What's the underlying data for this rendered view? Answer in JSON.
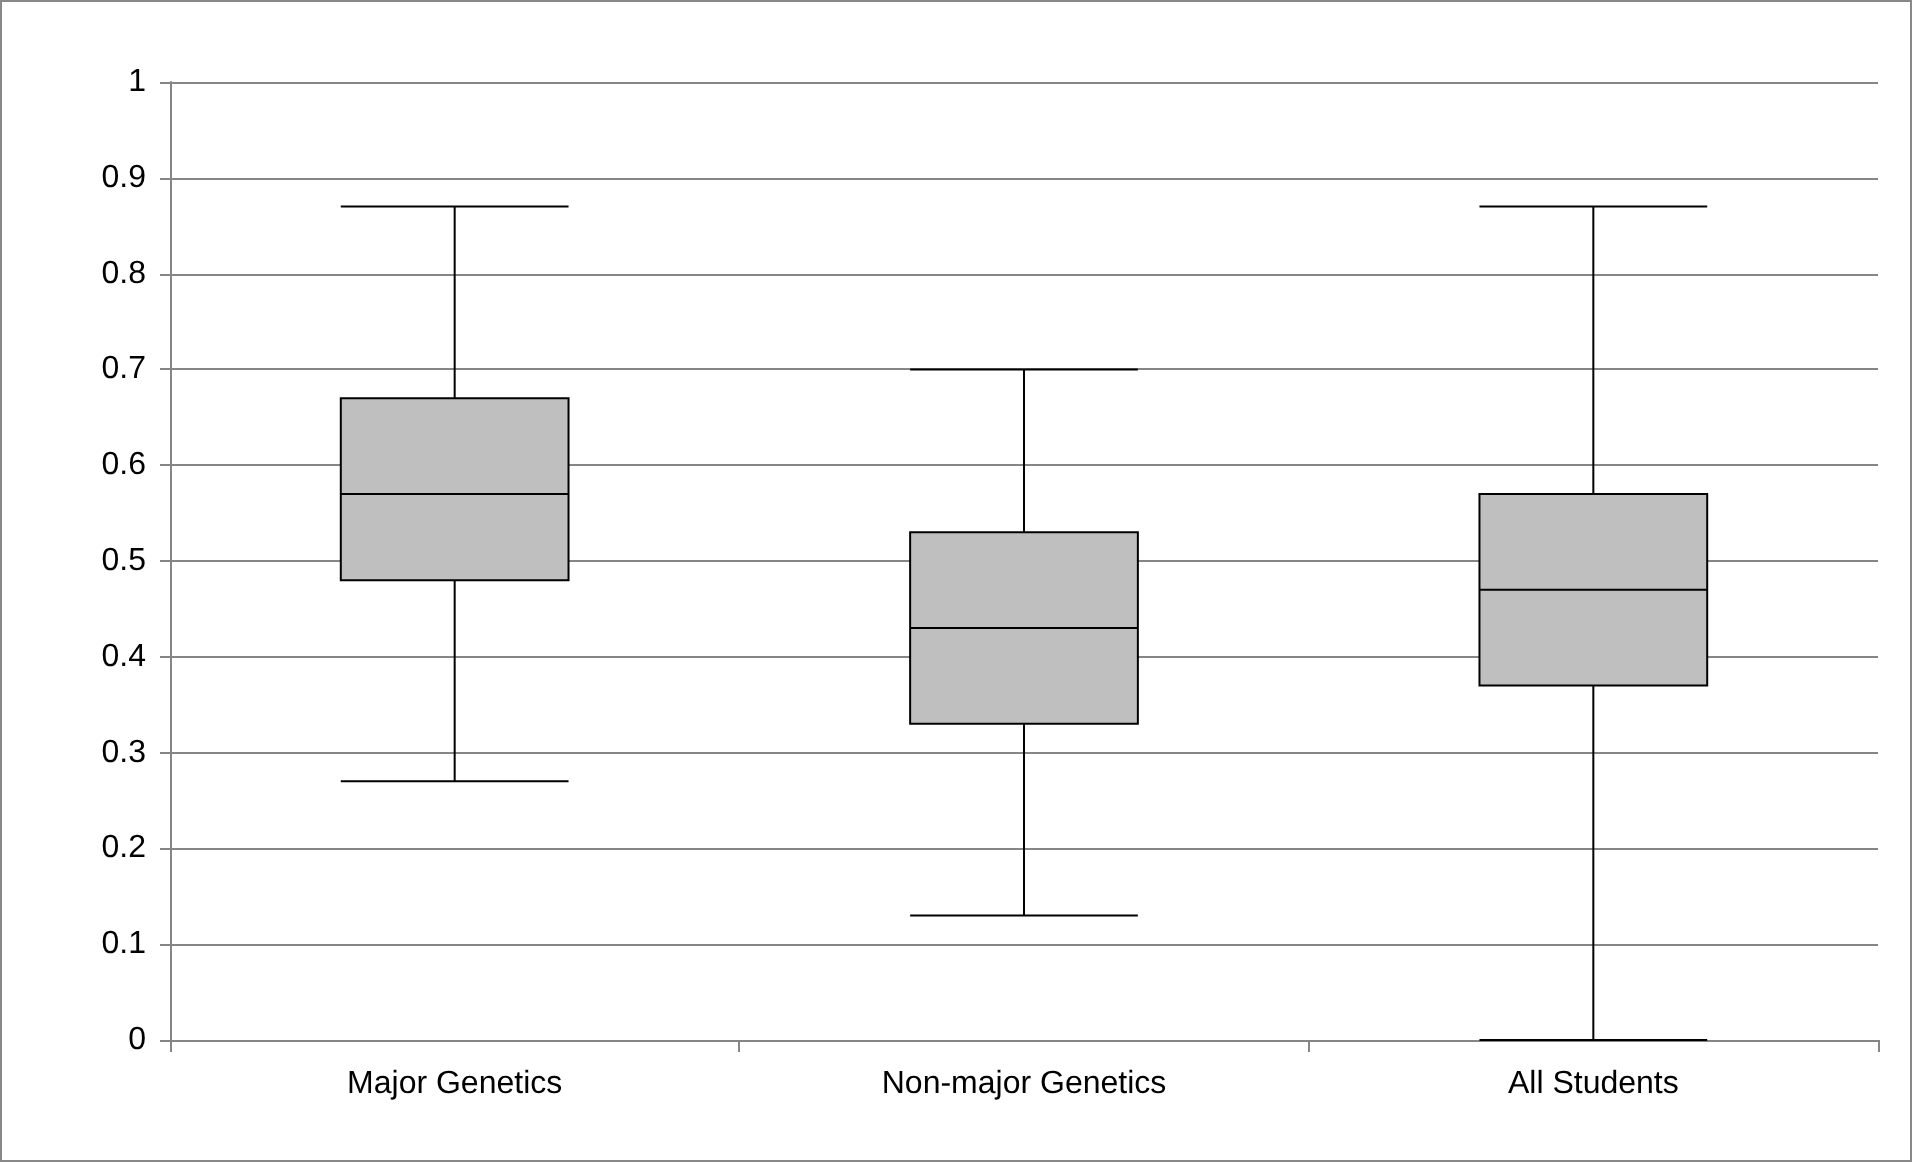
{
  "chart_data": {
    "type": "box",
    "categories": [
      "Major Genetics",
      "Non-major Genetics",
      "All Students"
    ],
    "boxes": [
      {
        "low": 0.27,
        "q1": 0.48,
        "median": 0.57,
        "q3": 0.67,
        "high": 0.87
      },
      {
        "low": 0.13,
        "q1": 0.33,
        "median": 0.43,
        "q3": 0.53,
        "high": 0.7
      },
      {
        "low": 0,
        "q1": 0.37,
        "median": 0.47,
        "q3": 0.57,
        "high": 0.87
      }
    ],
    "color": "#bfbfbf",
    "ylim": [
      0,
      1
    ],
    "yticks": [
      0,
      0.1,
      0.2,
      0.3,
      0.4,
      0.5,
      0.6,
      0.7,
      0.8,
      0.9,
      1
    ],
    "grid": "y"
  }
}
